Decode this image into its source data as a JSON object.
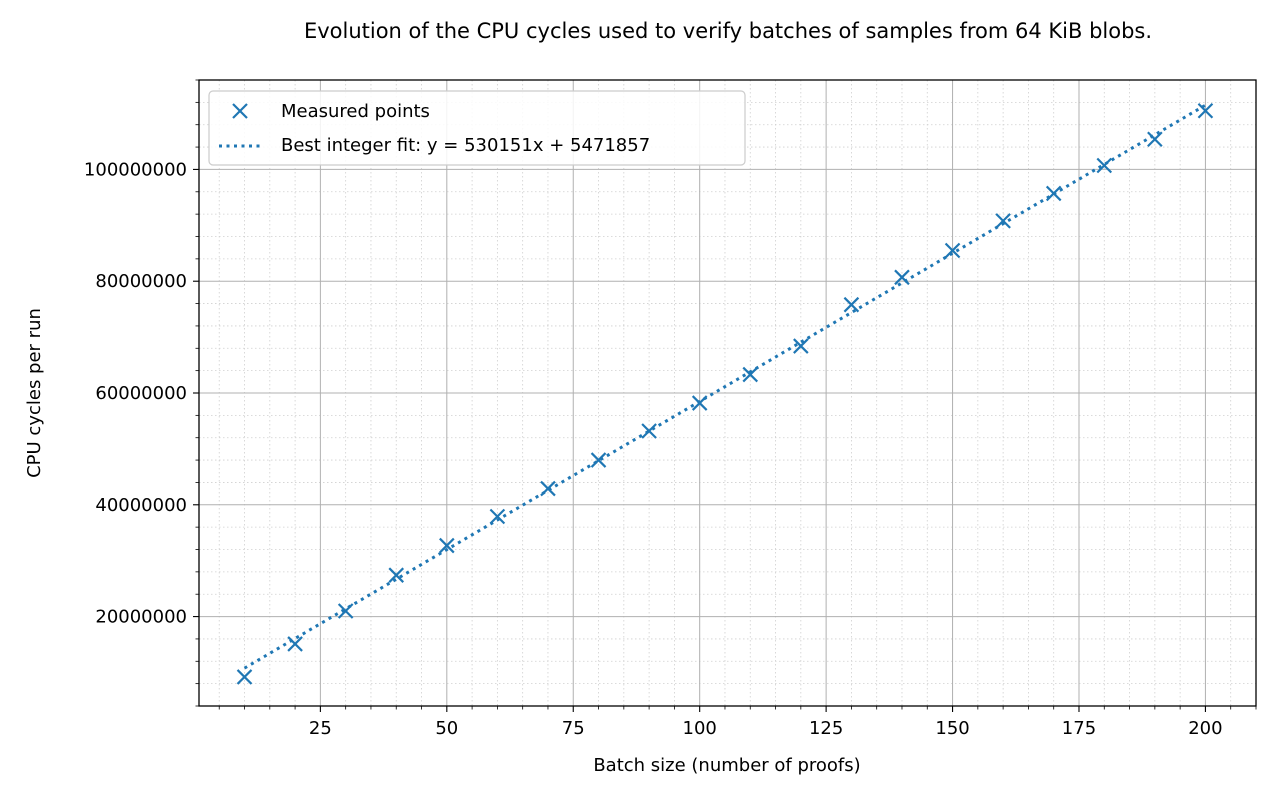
{
  "chart_data": {
    "type": "scatter",
    "title": "Evolution of the CPU cycles used to verify batches of samples from 64 KiB blobs.",
    "xlabel": "Batch size (number of proofs)",
    "ylabel": "CPU cycles per run",
    "xlim": [
      1,
      210
    ],
    "ylim": [
      4000000,
      116000000
    ],
    "xticks": [
      25,
      50,
      75,
      100,
      125,
      150,
      175,
      200
    ],
    "xtick_labels": [
      "25",
      "50",
      "75",
      "100",
      "125",
      "150",
      "175",
      "200"
    ],
    "yticks": [
      20000000,
      40000000,
      60000000,
      80000000,
      100000000
    ],
    "ytick_labels": [
      "20000000",
      "40000000",
      "60000000",
      "80000000",
      "100000000"
    ],
    "grid": true,
    "legend_position": "upper-left",
    "series": [
      {
        "name": "Measured points",
        "kind": "scatter",
        "marker": "x",
        "color": "#1f77b4",
        "x": [
          10,
          20,
          30,
          40,
          50,
          60,
          70,
          80,
          90,
          100,
          110,
          120,
          130,
          140,
          150,
          160,
          170,
          180,
          190,
          200
        ],
        "y": [
          9200000,
          15100000,
          21000000,
          27400000,
          32700000,
          37900000,
          42900000,
          48000000,
          53200000,
          58200000,
          63300000,
          68400000,
          75800000,
          80700000,
          85500000,
          90800000,
          95700000,
          100700000,
          105400000,
          110500000
        ]
      },
      {
        "name": "Best integer fit: y = 530151x + 5471857",
        "kind": "line",
        "style": "dotted",
        "color": "#1f77b4",
        "slope": 530151,
        "intercept": 5471857,
        "x_range": [
          10,
          200
        ]
      }
    ]
  }
}
